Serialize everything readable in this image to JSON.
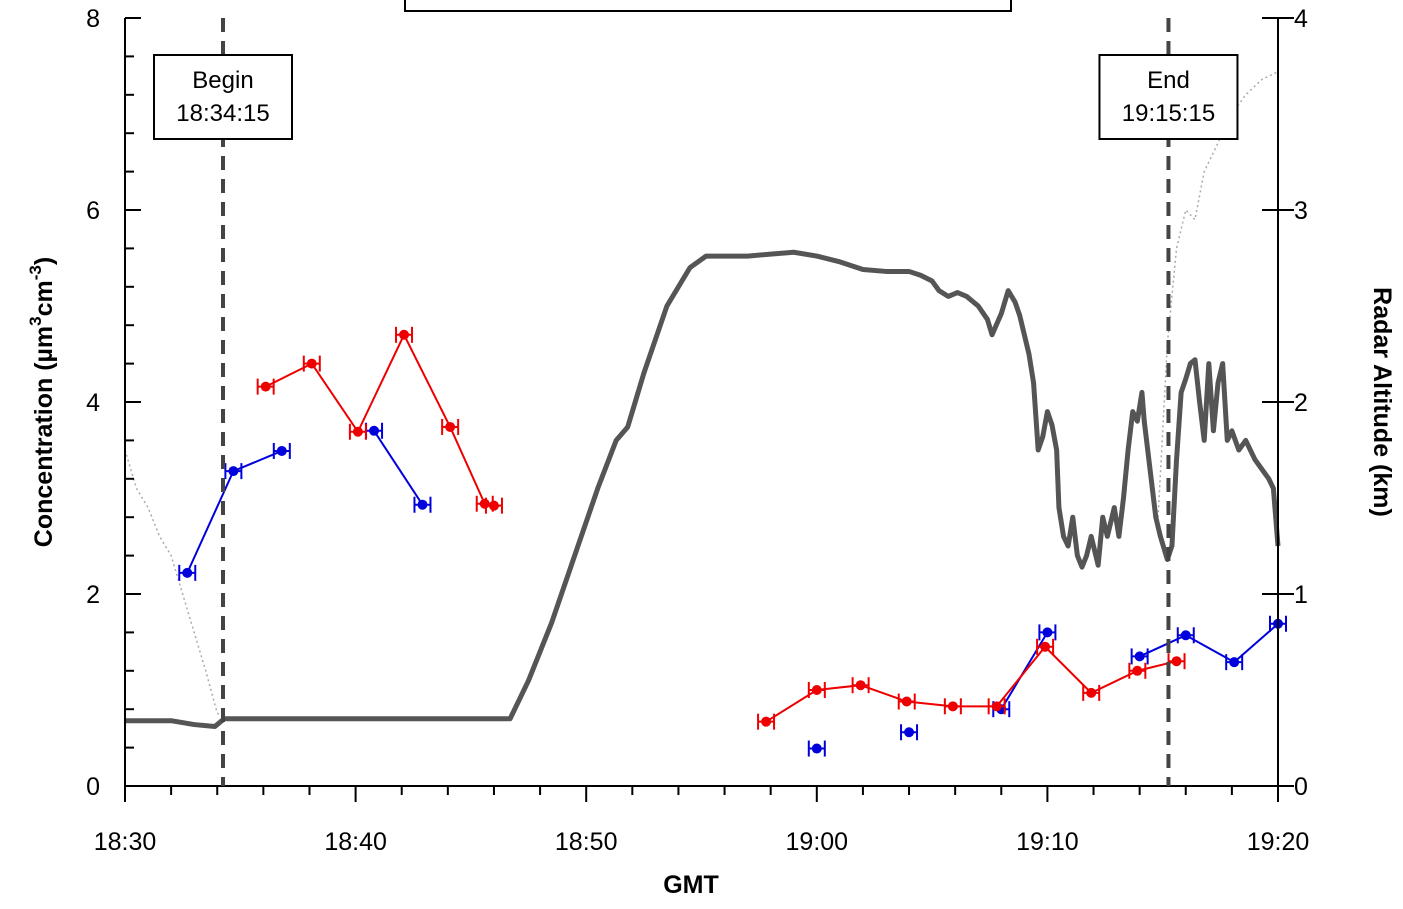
{
  "chart_data": {
    "type": "line",
    "title": "",
    "xlabel": "GMT",
    "ylabel_left": "Concentration  (µm³cm⁻³)",
    "ylabel_left_parts": {
      "base": "Concentration  (µm",
      "sup1": "3",
      "mid": "cm",
      "sup2": "-3",
      "end": ")"
    },
    "ylabel_right": "Radar Altitude  (km)",
    "x_ticks": [
      "18:30",
      "18:40",
      "18:50",
      "19:00",
      "19:10",
      "19:20"
    ],
    "x_tick_values": [
      0,
      10,
      20,
      30,
      40,
      50
    ],
    "xlim": [
      0,
      50
    ],
    "ylim_left": [
      0,
      8
    ],
    "ylim_right": [
      0,
      4
    ],
    "y_ticks_left": [
      "0",
      "2",
      "4",
      "6",
      "8"
    ],
    "y_ticks_right": [
      "0",
      "1",
      "2",
      "3",
      "4"
    ],
    "grid": false,
    "annotations": [
      {
        "line1": "Begin",
        "line2": "18:34:15",
        "x": 4.25
      },
      {
        "line1": "End",
        "line2": "19:15:15",
        "x": 45.25
      }
    ],
    "series": [
      {
        "color": "#0000dd",
        "axis": "left",
        "segments": [
          [
            [
              2.7,
              2.22
            ],
            [
              4.7,
              3.28
            ],
            [
              6.8,
              3.49
            ]
          ],
          [
            [
              10.8,
              3.7
            ],
            [
              12.9,
              2.93
            ]
          ],
          [
            [
              30.0,
              0.39
            ]
          ],
          [
            [
              34.0,
              0.56
            ]
          ],
          [
            [
              38.0,
              0.8
            ],
            [
              40.0,
              1.6
            ]
          ],
          [
            [
              44.0,
              1.35
            ],
            [
              46.0,
              1.57
            ],
            [
              48.1,
              1.29
            ],
            [
              50.0,
              1.69
            ]
          ]
        ]
      },
      {
        "color": "#ee0000",
        "axis": "left",
        "segments": [
          [
            [
              6.1,
              4.16
            ],
            [
              8.1,
              4.4
            ],
            [
              10.1,
              3.69
            ],
            [
              12.1,
              4.7
            ],
            [
              14.1,
              3.74
            ],
            [
              15.6,
              2.94
            ],
            [
              16.0,
              2.92
            ]
          ],
          [
            [
              27.8,
              0.67
            ],
            [
              30.0,
              1.0
            ],
            [
              31.9,
              1.05
            ],
            [
              33.9,
              0.88
            ],
            [
              35.9,
              0.83
            ],
            [
              37.8,
              0.83
            ],
            [
              39.9,
              1.45
            ],
            [
              41.9,
              0.97
            ],
            [
              43.9,
              1.2
            ],
            [
              45.6,
              1.3
            ]
          ]
        ]
      },
      {
        "color": "#555555",
        "axis": "right",
        "points": [
          [
            0,
            0.34
          ],
          [
            2,
            0.34
          ],
          [
            3,
            0.32
          ],
          [
            3.9,
            0.31
          ],
          [
            4.3,
            0.35
          ],
          [
            5,
            0.35
          ],
          [
            8,
            0.35
          ],
          [
            12,
            0.35
          ],
          [
            15,
            0.35
          ],
          [
            16.7,
            0.35
          ],
          [
            17.5,
            0.55
          ],
          [
            18.5,
            0.85
          ],
          [
            19.5,
            1.2
          ],
          [
            20.5,
            1.55
          ],
          [
            21.3,
            1.8
          ],
          [
            21.8,
            1.87
          ],
          [
            22.5,
            2.15
          ],
          [
            23.5,
            2.5
          ],
          [
            24.5,
            2.7
          ],
          [
            25.2,
            2.76
          ],
          [
            27,
            2.76
          ],
          [
            28,
            2.77
          ],
          [
            29,
            2.78
          ],
          [
            30,
            2.76
          ],
          [
            31,
            2.73
          ],
          [
            32,
            2.69
          ],
          [
            33,
            2.68
          ],
          [
            34,
            2.68
          ],
          [
            34.5,
            2.66
          ],
          [
            35,
            2.63
          ],
          [
            35.3,
            2.58
          ],
          [
            35.7,
            2.55
          ],
          [
            36.1,
            2.57
          ],
          [
            36.5,
            2.55
          ],
          [
            37,
            2.5
          ],
          [
            37.4,
            2.43
          ],
          [
            37.6,
            2.35
          ],
          [
            38,
            2.46
          ],
          [
            38.3,
            2.58
          ],
          [
            38.6,
            2.52
          ],
          [
            38.8,
            2.45
          ],
          [
            39.2,
            2.25
          ],
          [
            39.4,
            2.1
          ],
          [
            39.6,
            1.75
          ],
          [
            39.8,
            1.82
          ],
          [
            40,
            1.95
          ],
          [
            40.2,
            1.88
          ],
          [
            40.4,
            1.75
          ],
          [
            40.5,
            1.45
          ],
          [
            40.7,
            1.3
          ],
          [
            40.9,
            1.25
          ],
          [
            41.1,
            1.4
          ],
          [
            41.3,
            1.2
          ],
          [
            41.5,
            1.14
          ],
          [
            41.7,
            1.2
          ],
          [
            41.9,
            1.3
          ],
          [
            42.1,
            1.2
          ],
          [
            42.2,
            1.15
          ],
          [
            42.4,
            1.4
          ],
          [
            42.6,
            1.3
          ],
          [
            42.9,
            1.45
          ],
          [
            43.1,
            1.3
          ],
          [
            43.3,
            1.5
          ],
          [
            43.5,
            1.75
          ],
          [
            43.7,
            1.95
          ],
          [
            43.9,
            1.9
          ],
          [
            44.1,
            2.05
          ],
          [
            44.2,
            1.9
          ],
          [
            44.5,
            1.6
          ],
          [
            44.7,
            1.4
          ],
          [
            44.9,
            1.3
          ],
          [
            45.2,
            1.18
          ],
          [
            45.4,
            1.25
          ],
          [
            45.6,
            1.7
          ],
          [
            45.8,
            2.05
          ],
          [
            46,
            2.12
          ],
          [
            46.2,
            2.2
          ],
          [
            46.4,
            2.22
          ],
          [
            46.6,
            2.0
          ],
          [
            46.8,
            1.8
          ],
          [
            47,
            2.2
          ],
          [
            47.2,
            1.85
          ],
          [
            47.4,
            2.1
          ],
          [
            47.6,
            2.2
          ],
          [
            47.8,
            1.8
          ],
          [
            48,
            1.85
          ],
          [
            48.3,
            1.75
          ],
          [
            48.6,
            1.8
          ],
          [
            49,
            1.7
          ],
          [
            49.3,
            1.65
          ],
          [
            49.6,
            1.6
          ],
          [
            49.8,
            1.55
          ],
          [
            50,
            1.25
          ]
        ]
      },
      {
        "color": "#aaaaaa",
        "axis": "right",
        "dotted": true,
        "points": [
          [
            0,
            1.75
          ],
          [
            0.5,
            1.55
          ],
          [
            1,
            1.45
          ],
          [
            1.5,
            1.3
          ],
          [
            2,
            1.2
          ],
          [
            2.5,
            1.0
          ],
          [
            3,
            0.8
          ],
          [
            3.5,
            0.6
          ],
          [
            4,
            0.38
          ],
          [
            4.3,
            0.35
          ]
        ],
        "points_b": [
          [
            44.8,
            1.4
          ],
          [
            45.2,
            2.3
          ],
          [
            45.6,
            2.8
          ],
          [
            46,
            3.0
          ],
          [
            46.4,
            2.95
          ],
          [
            46.8,
            3.2
          ],
          [
            47.2,
            3.3
          ],
          [
            47.6,
            3.4
          ],
          [
            48,
            3.5
          ],
          [
            48.6,
            3.6
          ],
          [
            49.3,
            3.68
          ],
          [
            50,
            3.72
          ]
        ]
      }
    ]
  }
}
